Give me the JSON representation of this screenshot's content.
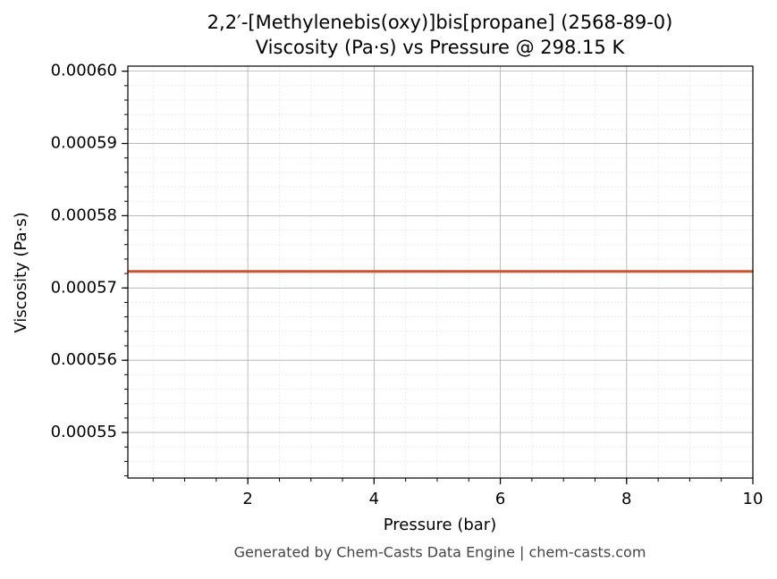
{
  "chart_data": {
    "type": "line",
    "title": "2,2′-[Methylenebis(oxy)]bis[propane] (2568-89-0)",
    "subtitle": "Viscosity (Pa·s) vs Pressure @ 298.15 K",
    "x_label": "Pressure (bar)",
    "y_label": "Viscosity (Pa·s)",
    "footer": "Generated by Chem-Casts Data Engine | chem-casts.com",
    "x": [
      0.1,
      10
    ],
    "series": [
      {
        "name": "Viscosity",
        "color": "#c8562c",
        "values": [
          0.0005723,
          0.0005723
        ]
      }
    ],
    "xlim": [
      0.1,
      10
    ],
    "ylim": [
      0.0005437,
      0.0006007
    ],
    "xticks": [
      2,
      4,
      6,
      8,
      10
    ],
    "yticks": [
      {
        "value": 0.00055,
        "label": "0.00055"
      },
      {
        "value": 0.00056,
        "label": "0.00056"
      },
      {
        "value": 0.00057,
        "label": "0.00057"
      },
      {
        "value": 0.00058,
        "label": "0.00058"
      },
      {
        "value": 0.00059,
        "label": "0.00059"
      },
      {
        "value": 0.0006,
        "label": "0.00060"
      }
    ],
    "grid": true
  }
}
